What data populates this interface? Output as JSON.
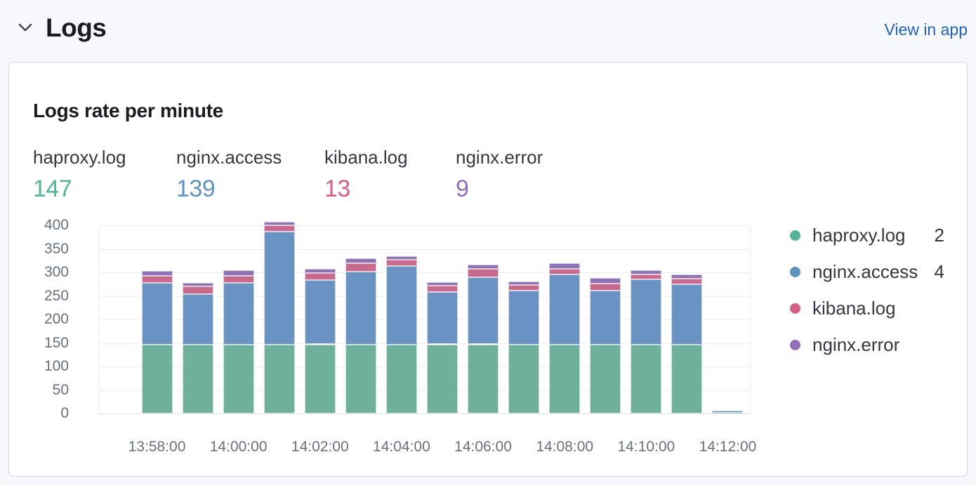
{
  "header": {
    "title": "Logs",
    "view_in_app": "View in app"
  },
  "card": {
    "title": "Logs rate per minute"
  },
  "stats": [
    {
      "label": "haproxy.log",
      "value": "147",
      "color": "#54B399"
    },
    {
      "label": "nginx.access",
      "value": "139",
      "color": "#6092C0"
    },
    {
      "label": "kibana.log",
      "value": "13",
      "color": "#D36086"
    },
    {
      "label": "nginx.error",
      "value": "9",
      "color": "#9170B8"
    }
  ],
  "legend": {
    "position": "right",
    "items": [
      {
        "label": "haproxy.log",
        "value": "2",
        "color": "#54B399"
      },
      {
        "label": "nginx.access",
        "value": "4",
        "color": "#6092C0"
      },
      {
        "label": "kibana.log",
        "value": "",
        "color": "#D36086"
      },
      {
        "label": "nginx.error",
        "value": "",
        "color": "#9170B8"
      }
    ]
  },
  "chart_data": {
    "type": "bar",
    "stacked": true,
    "title": "Logs rate per minute",
    "xlabel": "",
    "ylabel": "",
    "grid": "horizontal",
    "legend_position": "right",
    "ylim": [
      0,
      415
    ],
    "y_ticks": [
      0,
      50,
      100,
      150,
      200,
      250,
      300,
      350,
      400
    ],
    "x": [
      "13:58:00",
      "13:59:00",
      "14:00:00",
      "14:01:00",
      "14:02:00",
      "14:03:00",
      "14:04:00",
      "14:05:00",
      "14:06:00",
      "14:07:00",
      "14:08:00",
      "14:09:00",
      "14:10:00",
      "14:11:00",
      "14:12:00"
    ],
    "x_axis_tick_labels": [
      "13:58:00",
      "14:00:00",
      "14:02:00",
      "14:04:00",
      "14:06:00",
      "14:08:00",
      "14:10:00",
      "14:12:00"
    ],
    "series": [
      {
        "name": "haproxy.log",
        "color": "#6FB09C",
        "values": [
          147,
          147,
          147,
          147,
          147,
          147,
          147,
          147,
          147,
          147,
          147,
          147,
          147,
          147,
          2
        ]
      },
      {
        "name": "nginx.access",
        "color": "#6A92C2",
        "values": [
          130,
          106,
          130,
          240,
          136,
          155,
          166,
          111,
          143,
          114,
          149,
          114,
          138,
          128,
          4
        ]
      },
      {
        "name": "kibana.log",
        "color": "#C76A8E",
        "values": [
          15,
          17,
          16,
          13,
          15,
          18,
          14,
          14,
          17,
          12,
          12,
          15,
          11,
          11,
          0
        ]
      },
      {
        "name": "nginx.error",
        "color": "#8D72B4",
        "values": [
          11,
          8,
          12,
          8,
          10,
          10,
          7,
          7,
          9,
          8,
          12,
          12,
          9,
          9,
          0
        ]
      }
    ]
  }
}
